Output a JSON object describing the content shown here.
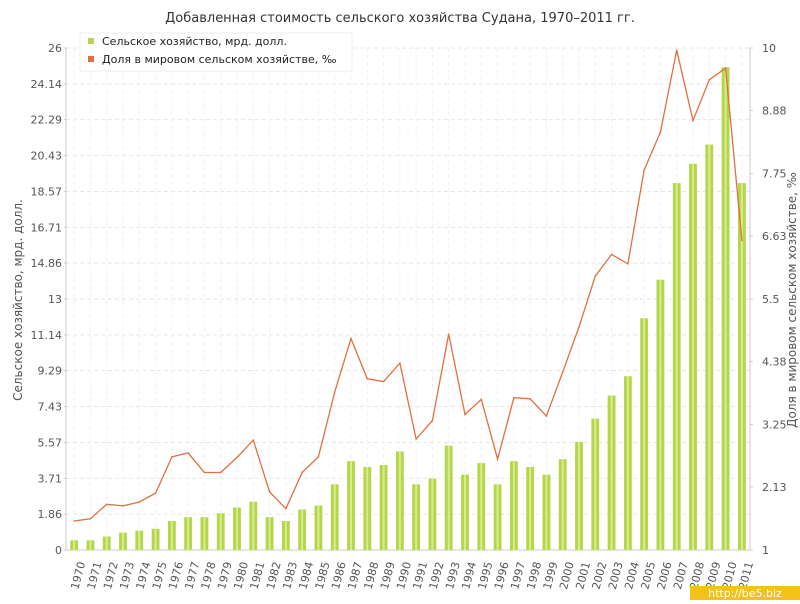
{
  "chart_data": {
    "type": "bar+line",
    "title": "Добавленная стоимость сельского хозяйства Судана, 1970–2011 гг.",
    "ylabel_left": "Сельское хозяйство, мрд. долл.",
    "ylabel_right": "Доля в мировом сельском хозяйстве, ‰",
    "legend_position": "top-left",
    "grid": true,
    "categories": [
      "1970",
      "1971",
      "1972",
      "1973",
      "1974",
      "1975",
      "1976",
      "1977",
      "1978",
      "1979",
      "1980",
      "1981",
      "1982",
      "1983",
      "1984",
      "1985",
      "1986",
      "1987",
      "1988",
      "1989",
      "1990",
      "1991",
      "1992",
      "1993",
      "1994",
      "1995",
      "1996",
      "1997",
      "1998",
      "1999",
      "2000",
      "2001",
      "2002",
      "2003",
      "2004",
      "2005",
      "2006",
      "2007",
      "2008",
      "2009",
      "2010",
      "2011"
    ],
    "y_left": {
      "min": 0,
      "max": 26,
      "ticks": [
        0,
        1.86,
        3.71,
        5.57,
        7.43,
        9.29,
        11.14,
        13,
        14.86,
        16.71,
        18.57,
        20.43,
        22.29,
        24.14,
        26
      ],
      "tick_labels": [
        "0",
        "1.86",
        "3.71",
        "5.57",
        "7.43",
        "9.29",
        "11.14",
        "13",
        "14.86",
        "16.71",
        "18.57",
        "20.43",
        "22.29",
        "24.14",
        "26"
      ]
    },
    "y_right": {
      "min": 1,
      "max": 10,
      "ticks": [
        1,
        2.13,
        3.25,
        4.38,
        5.5,
        6.63,
        7.75,
        8.88,
        10
      ],
      "tick_labels": [
        "1",
        "2.13",
        "3.25",
        "4.38",
        "5.5",
        "6.63",
        "7.75",
        "8.88",
        "10"
      ]
    },
    "series": [
      {
        "name": "Сельское хозяйство, мрд. долл.",
        "type": "bar",
        "axis": "left",
        "color": "#b3d64a",
        "values": [
          0.5,
          0.5,
          0.7,
          0.9,
          1.0,
          1.1,
          1.5,
          1.7,
          1.7,
          1.9,
          2.2,
          2.5,
          1.7,
          1.5,
          2.1,
          2.3,
          3.4,
          4.6,
          4.3,
          4.4,
          5.1,
          3.4,
          3.7,
          5.4,
          3.9,
          4.5,
          3.4,
          4.6,
          4.3,
          3.9,
          4.7,
          5.6,
          6.8,
          8.0,
          9.0,
          12.0,
          14.0,
          19.0,
          20.0,
          21.0,
          25.0,
          19.0
        ]
      },
      {
        "name": "Доля в мировом сельском хозяйстве, ‰",
        "type": "line",
        "axis": "right",
        "color": "#e07040",
        "values": [
          1.52,
          1.56,
          1.82,
          1.79,
          1.86,
          2.02,
          2.67,
          2.74,
          2.39,
          2.39,
          2.66,
          2.97,
          2.04,
          1.74,
          2.39,
          2.67,
          3.83,
          4.79,
          4.07,
          4.02,
          4.35,
          2.99,
          3.32,
          4.87,
          3.43,
          3.7,
          2.63,
          3.73,
          3.71,
          3.4,
          4.19,
          5.0,
          5.91,
          6.3,
          6.13,
          7.81,
          8.49,
          9.96,
          8.7,
          9.43,
          9.64,
          6.55
        ]
      }
    ]
  },
  "watermark": "http://be5.biz"
}
